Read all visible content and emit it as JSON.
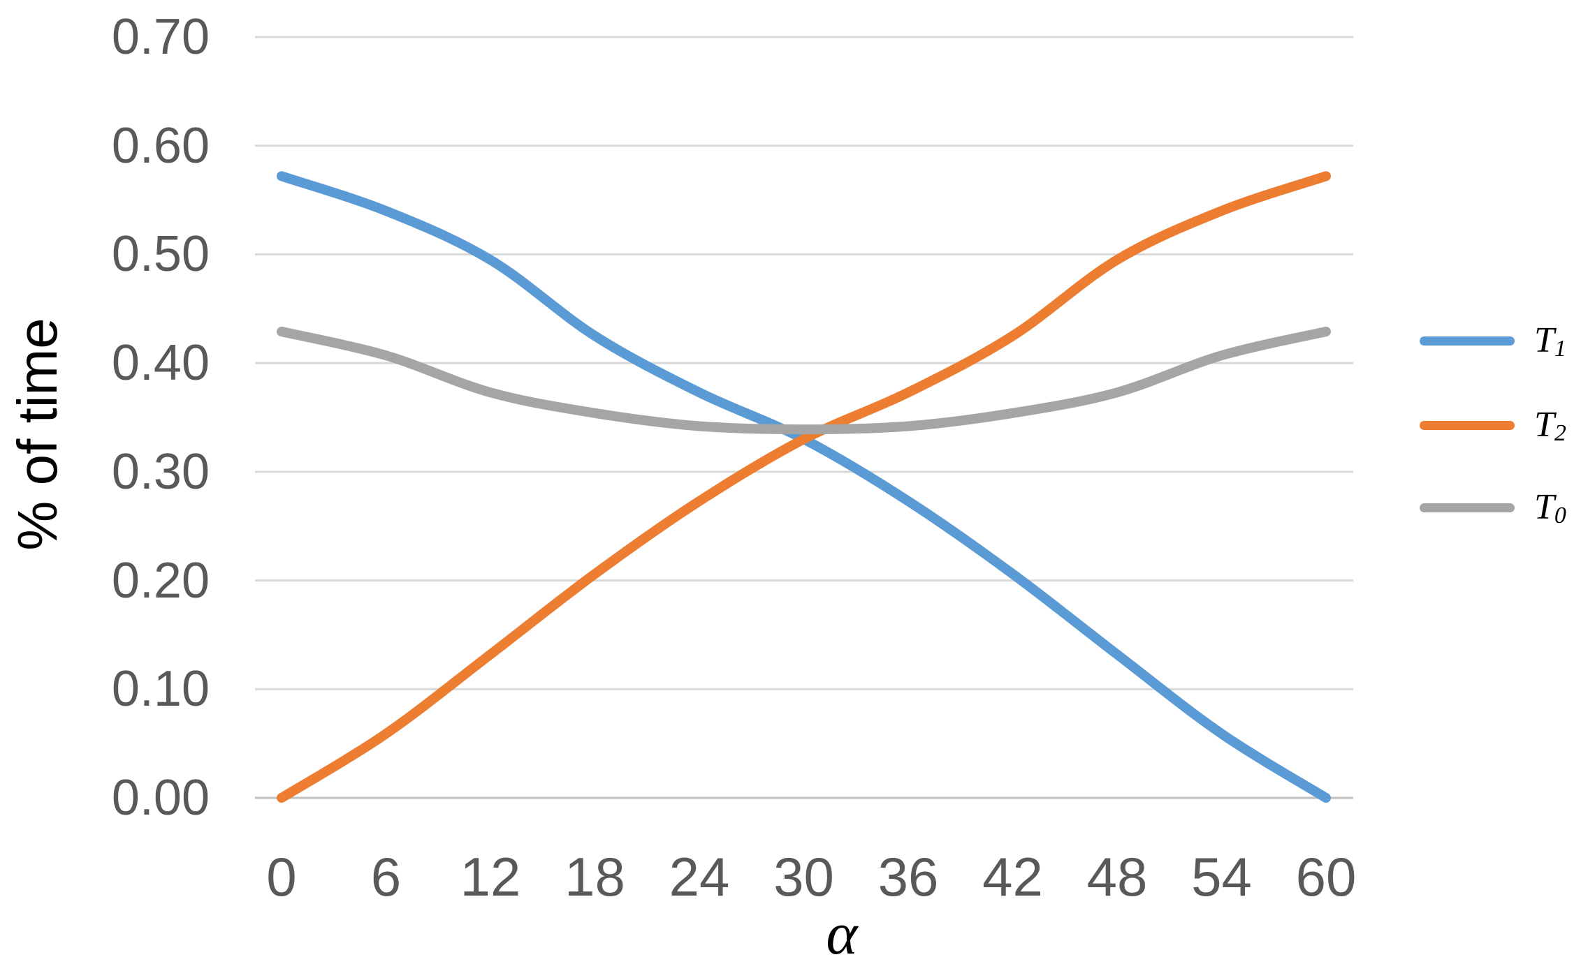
{
  "chart_data": {
    "type": "line",
    "title": "",
    "xlabel": "α",
    "ylabel": "% of time",
    "x": [
      0,
      6,
      12,
      18,
      24,
      30,
      36,
      42,
      48,
      54,
      60
    ],
    "xtick_labels": [
      "0",
      "6",
      "12",
      "18",
      "24",
      "30",
      "36",
      "42",
      "48",
      "54",
      "60"
    ],
    "ytick_labels": [
      "0.00",
      "0.10",
      "0.20",
      "0.30",
      "0.40",
      "0.50",
      "0.60",
      "0.70"
    ],
    "ylim": [
      0.0,
      0.7
    ],
    "ytick_step": 0.1,
    "grid": "horizontal",
    "legend_position": "right",
    "series": [
      {
        "name": "T1",
        "label_base": "T",
        "label_sub": "1",
        "color": "#5B9BD5",
        "values": [
          0.572,
          0.54,
          0.495,
          0.425,
          0.373,
          0.33,
          0.273,
          0.206,
          0.132,
          0.059,
          0.0
        ]
      },
      {
        "name": "T2",
        "label_base": "T",
        "label_sub": "2",
        "color": "#ED7D31",
        "values": [
          0.0,
          0.059,
          0.132,
          0.206,
          0.273,
          0.33,
          0.373,
          0.425,
          0.495,
          0.54,
          0.572
        ]
      },
      {
        "name": "T0",
        "label_base": "T",
        "label_sub": "0",
        "color": "#A5A5A5",
        "values": [
          0.429,
          0.407,
          0.373,
          0.354,
          0.342,
          0.339,
          0.342,
          0.354,
          0.373,
          0.407,
          0.429
        ]
      }
    ]
  },
  "colors": {
    "background": "#FFFFFF",
    "gridline": "#D9D9D9",
    "axis_line": "#C0C0C0",
    "tick_label": "#595959",
    "axis_title": "#000000"
  }
}
